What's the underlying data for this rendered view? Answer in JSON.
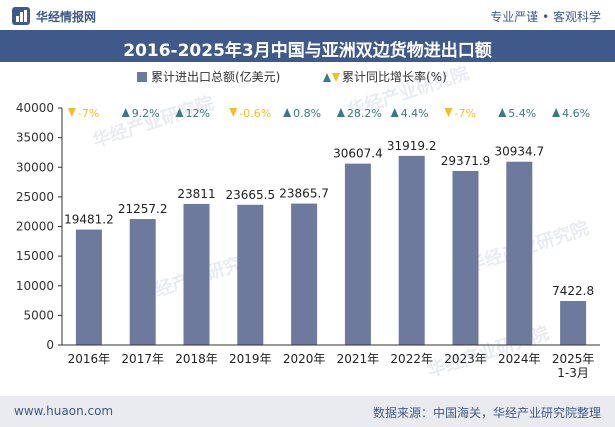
{
  "header": {
    "brand": "华经情报网",
    "slogan": "专业严谨 • 客观科学",
    "title": "2016-2025年3月中国与亚洲双边货物进出口额"
  },
  "footer": {
    "website": "www.huaon.com",
    "source": "数据来源：中国海关，华经产业研究院整理"
  },
  "watermark": "华经产业研究院",
  "colors": {
    "bar": "#6d7a9d",
    "brand": "#3f5a8a",
    "up": "#3a7a86",
    "down": "#f2bf1f"
  },
  "chart_data": {
    "type": "bar",
    "categories": [
      "2016年",
      "2017年",
      "2018年",
      "2019年",
      "2020年",
      "2021年",
      "2022年",
      "2023年",
      "2024年",
      "2025年1-3月"
    ],
    "category_lines": [
      [
        "2016年"
      ],
      [
        "2017年"
      ],
      [
        "2018年"
      ],
      [
        "2019年"
      ],
      [
        "2020年"
      ],
      [
        "2021年"
      ],
      [
        "2022年"
      ],
      [
        "2023年"
      ],
      [
        "2024年"
      ],
      [
        "2025年",
        "1-3月"
      ]
    ],
    "series": [
      {
        "name": "累计进出口总额(亿美元)",
        "values": [
          19481.2,
          21257.2,
          23811,
          23665.5,
          23865.7,
          30607.4,
          31919.2,
          29371.9,
          30934.7,
          7422.8
        ],
        "labels": [
          "19481.2",
          "21257.2",
          "23811",
          "23665.5",
          "23865.7",
          "30607.4",
          "31919.2",
          "29371.9",
          "30934.7",
          "7422.8"
        ]
      },
      {
        "name": "累计同比增长率(%)",
        "values": [
          -7,
          9.2,
          12,
          -0.6,
          0.8,
          28.2,
          4.4,
          -7,
          5.4,
          4.6
        ],
        "labels": [
          "-7%",
          "9.2%",
          "12%",
          "-0.6%",
          "0.8%",
          "28.2%",
          "4.4%",
          "-7%",
          "5.4%",
          "4.6%"
        ]
      }
    ],
    "ylim": [
      0,
      40000
    ],
    "yticks": [
      0,
      5000,
      10000,
      15000,
      20000,
      25000,
      30000,
      35000,
      40000
    ],
    "legend_position": "top-center",
    "grid": false
  }
}
